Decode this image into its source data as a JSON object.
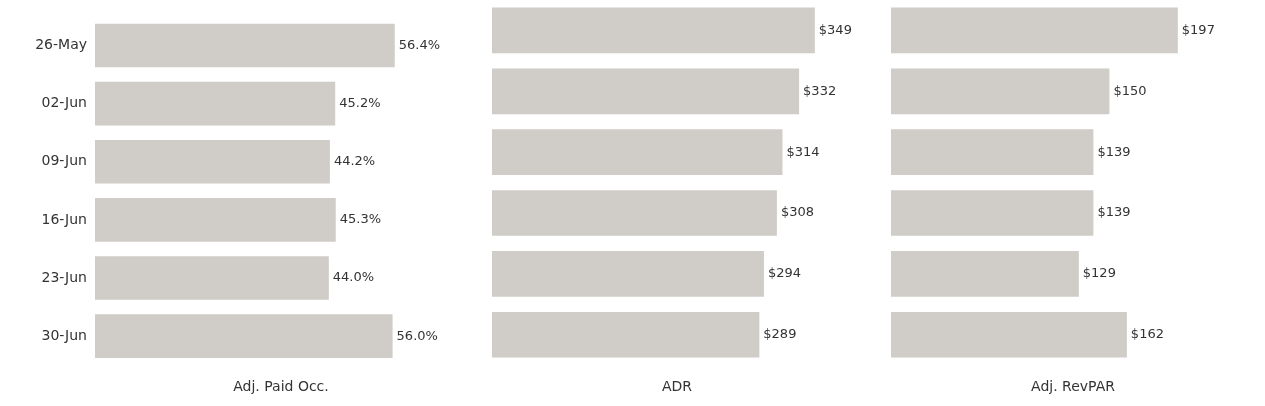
{
  "chart_data": [
    {
      "type": "bar",
      "orientation": "horizontal",
      "categories": [
        "26-May",
        "02-Jun",
        "09-Jun",
        "16-Jun",
        "23-Jun",
        "30-Jun"
      ],
      "xlabel": "Adj. Paid Occ.",
      "tick_labels": "y",
      "grid": false,
      "legend": false,
      "series": [
        {
          "color": "#d0ccc7",
          "values": [
            56.4,
            45.2,
            44.2,
            45.3,
            44.0,
            56.0
          ],
          "value_labels": [
            "56.4%",
            "45.2%",
            "44.2%",
            "45.3%",
            "44.0%",
            "56.0%"
          ]
        }
      ]
    },
    {
      "type": "bar",
      "orientation": "horizontal",
      "categories": [
        null,
        null,
        null,
        null,
        null,
        null
      ],
      "xlabel": "ADR",
      "tick_labels": false,
      "grid": false,
      "legend": false,
      "series": [
        {
          "color": "#d0ccc7",
          "values": [
            349,
            332,
            314,
            308,
            294,
            289
          ],
          "value_labels": [
            "$349",
            "$332",
            "$314",
            "$308",
            "$294",
            "$289"
          ]
        }
      ]
    },
    {
      "type": "bar",
      "orientation": "horizontal",
      "categories": [
        null,
        null,
        null,
        null,
        null,
        null
      ],
      "xlabel": "Adj. RevPAR",
      "tick_labels": false,
      "grid": false,
      "legend": false,
      "series": [
        {
          "color": "#d0ccc7",
          "values": [
            197,
            150,
            139,
            139,
            129,
            162
          ],
          "value_labels": [
            "$197",
            "$150",
            "$139",
            "$139",
            "$129",
            "$162"
          ]
        }
      ]
    }
  ]
}
